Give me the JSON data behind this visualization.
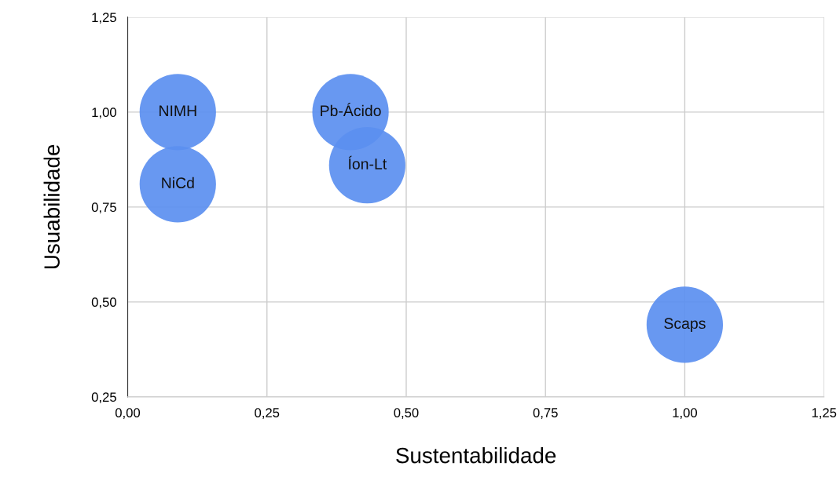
{
  "chart_data": {
    "type": "bubble",
    "xlabel": "Sustentabilidade",
    "ylabel": "Usuabilidade",
    "series": [
      {
        "color": "#5b8ff0",
        "x": [
          0.09,
          0.09,
          0.4,
          0.43,
          1.0
        ],
        "values": [
          1.0,
          0.81,
          1.0,
          0.86,
          0.44
        ],
        "sizes": [
          1,
          1,
          1,
          1,
          1
        ],
        "value_labels": [
          "NIMH",
          "NiCd",
          "Pb-Ácido",
          "Íon-Lt",
          "Scaps"
        ]
      }
    ],
    "xlim": [
      0,
      1.25
    ],
    "xticks": [
      {
        "value": 0,
        "label": "0,00"
      },
      {
        "value": 0.25,
        "label": "0,25"
      },
      {
        "value": 0.5,
        "label": "0,50"
      },
      {
        "value": 0.75,
        "label": "0,75"
      },
      {
        "value": 1.0,
        "label": "1,00"
      },
      {
        "value": 1.25,
        "label": "1,25"
      }
    ],
    "ylim": [
      0.25,
      1.25
    ],
    "yticks": [
      {
        "value": 0.25,
        "label": "0,25"
      },
      {
        "value": 0.5,
        "label": "0,50"
      },
      {
        "value": 0.75,
        "label": "0,75"
      },
      {
        "value": 1.0,
        "label": "1,00"
      },
      {
        "value": 1.25,
        "label": "1,25"
      }
    ],
    "grid": true
  }
}
